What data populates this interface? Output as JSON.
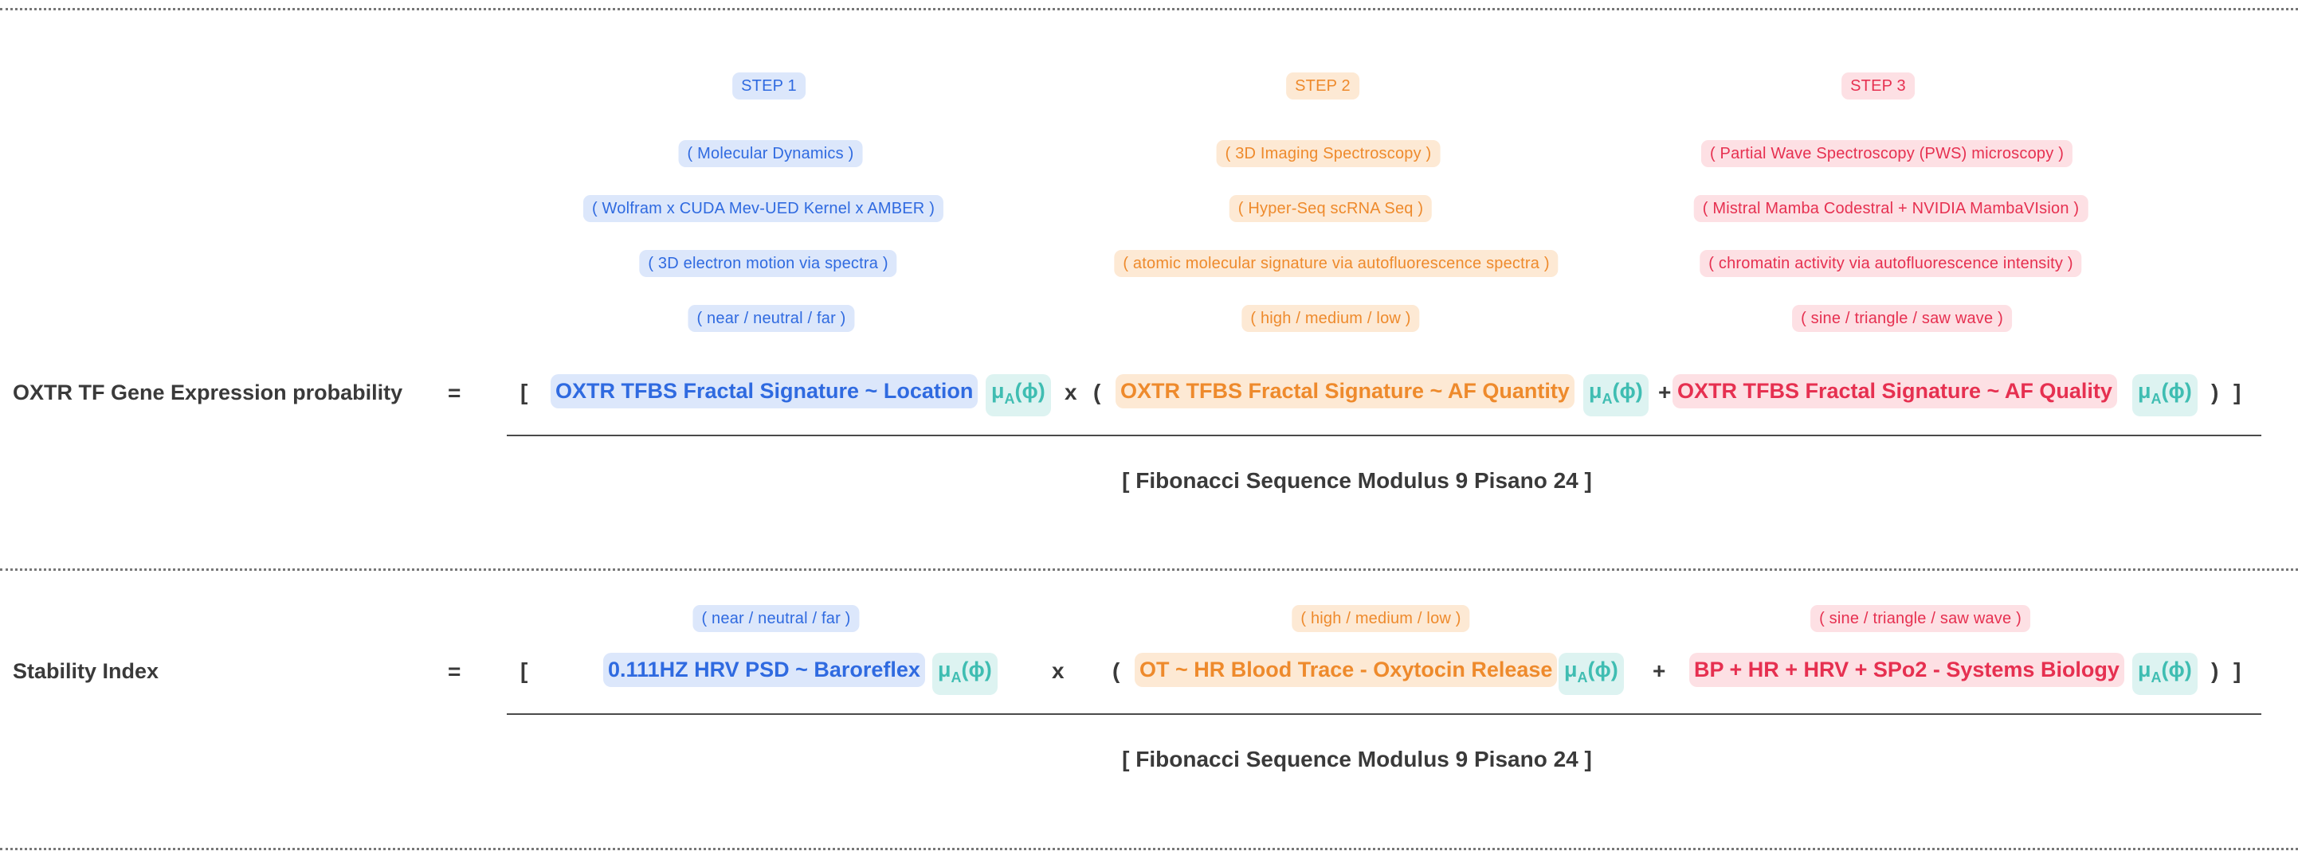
{
  "steps": [
    {
      "label": "STEP 1",
      "items": [
        "( Molecular Dynamics )",
        "( Wolfram x CUDA Mev-UED Kernel x AMBER )",
        "( 3D electron motion via spectra )",
        "( near / neutral / far )"
      ]
    },
    {
      "label": "STEP 2",
      "items": [
        "( 3D Imaging Spectroscopy )",
        "( Hyper-Seq scRNA Seq )",
        "( atomic molecular signature via autofluorescence spectra )",
        "( high / medium / low )"
      ]
    },
    {
      "label": "STEP 3",
      "items": [
        "( Partial Wave Spectroscopy (PWS) microscopy )",
        "( Mistral Mamba Codestral + NVIDIA MambaVIsion )",
        "( chromatin  activity via autofluorescence intensity )",
        "( sine / triangle / saw wave )"
      ]
    }
  ],
  "mu_symbol": "μ",
  "mu_sub": "A",
  "mu_arg": "(ϕ)",
  "equation1": {
    "lhs": "OXTR TF Gene Expression probability",
    "equals": "=",
    "open_bracket": "[",
    "term1": "OXTR TFBS Fractal Signature ~ Location",
    "times": "x",
    "open_paren": "(",
    "term2": "OXTR TFBS Fractal Signature ~ AF Quantity",
    "plus": "+",
    "term3": "OXTR TFBS Fractal Signature ~ AF Quality",
    "close_paren": ")",
    "close_bracket": "]",
    "denominator": "[  Fibonacci Sequence Modulus 9 Pisano 24  ]"
  },
  "equation2": {
    "hints": [
      "( near / neutral / far )",
      "( high / medium / low )",
      "( sine / triangle / saw wave )"
    ],
    "lhs": "Stability Index",
    "equals": "=",
    "open_bracket": "[",
    "term1": "0.111HZ HRV PSD  ~ Baroreflex",
    "times": "x",
    "open_paren": "(",
    "term2": "OT ~ HR Blood Trace  - Oxytocin Release",
    "plus": "+",
    "term3": "BP + HR + HRV + SPo2 - Systems Biology",
    "close_paren": ")",
    "close_bracket": "]",
    "denominator": "[  Fibonacci Sequence Modulus 9 Pisano 24  ]"
  },
  "colors": {
    "blue": "#2f6ae0",
    "orange": "#ee8a2c",
    "red": "#e63050",
    "teal": "#3fbdb2"
  }
}
